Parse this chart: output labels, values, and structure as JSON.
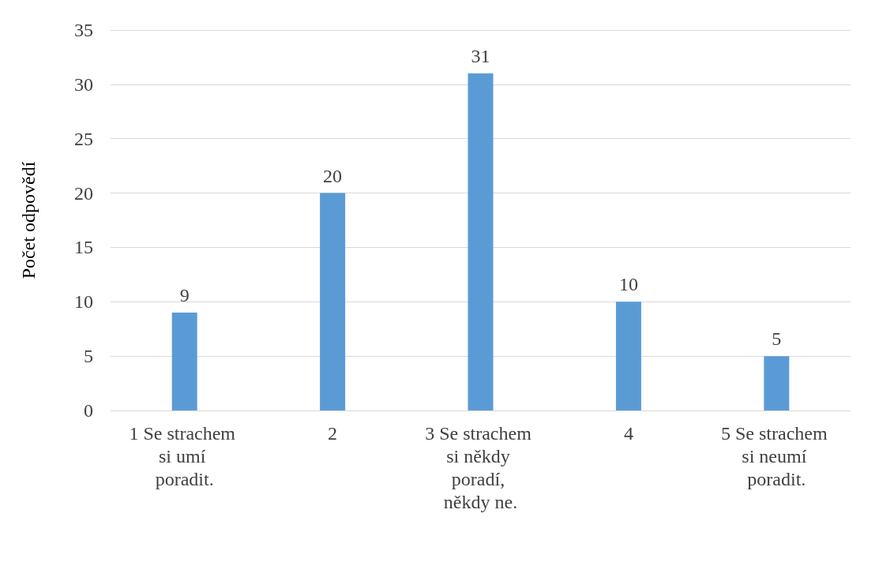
{
  "chart_data": {
    "type": "bar",
    "ylabel": "Počet odpovědí",
    "categories": [
      "1 Se strachem si umí poradit.",
      "2",
      "3 Se strachem si někdy poradí, někdy ne.",
      "4",
      "5 Se strachem si neumí poradit."
    ],
    "values": [
      9,
      20,
      31,
      10,
      5
    ],
    "color": "#5b9bd5",
    "data_labels": true,
    "ylim": [
      0,
      35
    ],
    "yticks": [
      0,
      5,
      10,
      15,
      20,
      25,
      30,
      35
    ],
    "grid": "y"
  }
}
